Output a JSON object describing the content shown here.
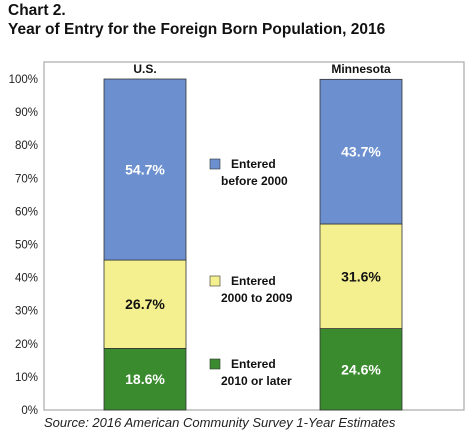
{
  "title_line1": "Chart 2.",
  "title_line2": "Year of Entry for the Foreign Born Population, 2016",
  "source": "Source: 2016 American Community Survey 1-Year Estimates",
  "colors": {
    "blue": "#6b8fcf",
    "yellow": "#f5f08f",
    "green": "#3a8a2e",
    "bar_border": "#333333",
    "frame": "#999999"
  },
  "chart_data": {
    "type": "bar",
    "stacked": true,
    "percent": true,
    "categories": [
      "U.S.",
      "Minnesota"
    ],
    "series": [
      {
        "name": "Entered 2010 or later",
        "values": [
          18.6,
          24.6
        ],
        "labels": [
          "18.6%",
          "24.6%"
        ],
        "color": "green",
        "legend_lines": [
          "Entered",
          "2010 or later"
        ]
      },
      {
        "name": "Entered 2000 to 2009",
        "values": [
          26.7,
          31.6
        ],
        "labels": [
          "26.7%",
          "31.6%"
        ],
        "color": "yellow",
        "legend_lines": [
          "Entered",
          "2000 to 2009"
        ]
      },
      {
        "name": "Entered before 2000",
        "values": [
          54.7,
          43.7
        ],
        "labels": [
          "54.7%",
          "43.7%"
        ],
        "color": "blue",
        "legend_lines": [
          "Entered",
          "before 2000"
        ]
      }
    ],
    "y_ticks": [
      "0%",
      "10%",
      "20%",
      "30%",
      "40%",
      "50%",
      "60%",
      "70%",
      "80%",
      "90%",
      "100%"
    ],
    "ylim": [
      0,
      100
    ],
    "grid": false,
    "legend_position": "between-bars"
  }
}
